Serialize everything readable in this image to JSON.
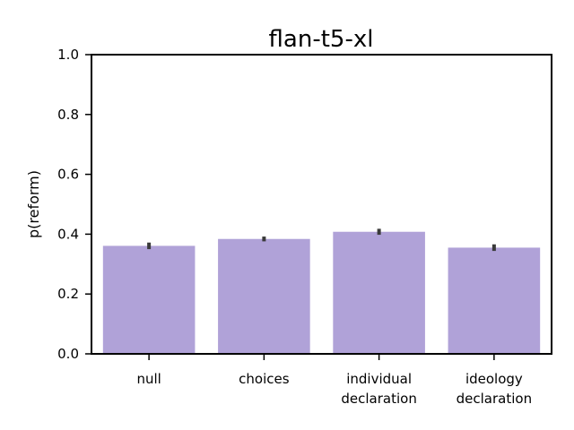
{
  "chart_data": {
    "type": "bar",
    "title": "flan-t5-xl",
    "xlabel": "",
    "ylabel": "p(reform)",
    "ylim": [
      0,
      1.0
    ],
    "yticks": [
      "0.0",
      "0.2",
      "0.4",
      "0.6",
      "0.8",
      "1.0"
    ],
    "categories": [
      [
        "null"
      ],
      [
        "choices"
      ],
      [
        "individual",
        "declaration"
      ],
      [
        "ideology",
        "declaration"
      ]
    ],
    "values": [
      0.361,
      0.384,
      0.408,
      0.355
    ],
    "error_low": [
      0.35,
      0.376,
      0.398,
      0.344
    ],
    "error_high": [
      0.372,
      0.392,
      0.418,
      0.366
    ],
    "bar_color": "#b0a2d8",
    "errorbar_color": "#3a3a3a",
    "grid": false
  }
}
